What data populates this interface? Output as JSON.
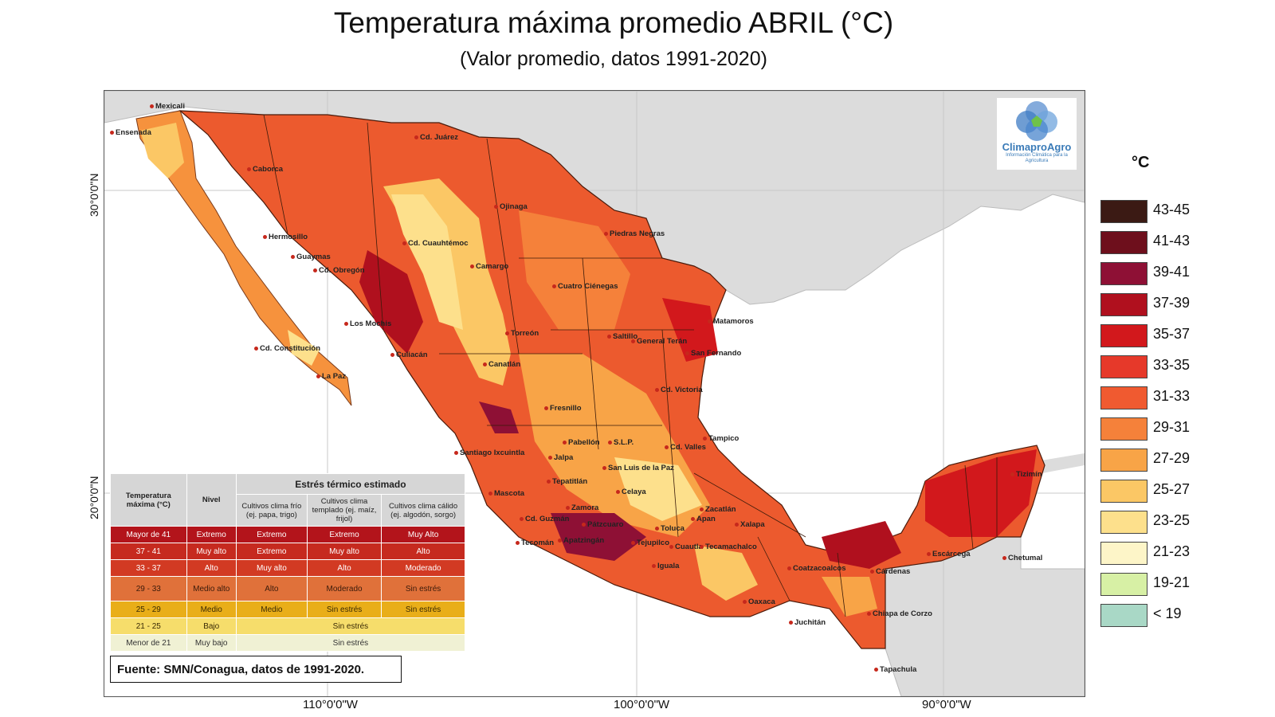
{
  "title": "Temperatura máxima promedio ABRIL (°C)",
  "subtitle": "(Valor promedio, datos 1991-2020)",
  "axes": {
    "lat_labels": [
      "30°0'0\"N",
      "20°0'0\"N"
    ],
    "lon_labels": [
      "110°0'0\"W",
      "100°0'0\"W",
      "90°0'0\"W"
    ]
  },
  "logo": {
    "name": "ClimaproAgro",
    "tagline": "Información Climática para la Agricultura"
  },
  "legend": {
    "unit": "°C",
    "classes": [
      {
        "label": "43-45",
        "color": "#3b1a14"
      },
      {
        "label": "41-43",
        "color": "#6e0f1c"
      },
      {
        "label": "39-41",
        "color": "#8e1035"
      },
      {
        "label": "37-39",
        "color": "#b0101e"
      },
      {
        "label": "35-37",
        "color": "#d2181c"
      },
      {
        "label": "33-35",
        "color": "#e6392a"
      },
      {
        "label": "31-33",
        "color": "#f05a30"
      },
      {
        "label": "29-31",
        "color": "#f5813a"
      },
      {
        "label": "27-29",
        "color": "#f8a447"
      },
      {
        "label": "25-27",
        "color": "#fbc765"
      },
      {
        "label": "23-25",
        "color": "#fde08c"
      },
      {
        "label": "21-23",
        "color": "#fdf5c8"
      },
      {
        "label": "19-21",
        "color": "#d7f0a5"
      },
      {
        "label": "< 19",
        "color": "#a9d8c6"
      }
    ]
  },
  "cities": [
    "Mexicali",
    "Ensenada",
    "Cd. Juárez",
    "Caborca",
    "Ojinaga",
    "Hermosillo",
    "Cd. Cuauhtémoc",
    "Piedras Negras",
    "Guaymas",
    "Camargo",
    "Cd. Obregón",
    "Cuatro Ciénegas",
    "Matamoros",
    "Los Mochis",
    "Torreón",
    "Saltillo",
    "General Terán",
    "Cd. Constitución",
    "San Fernando",
    "Culiacán",
    "Canatlán",
    "La Paz",
    "Cd. Victoria",
    "Fresnillo",
    "Tampico",
    "Santiago Ixcuintla",
    "Pabellón",
    "S.L.P.",
    "Cd. Valles",
    "Jalpa",
    "Tepatitlán",
    "San Luis de la Paz",
    "Mascota",
    "Celaya",
    "Zamora",
    "Zacatlán",
    "Cd. Guzmán",
    "Pátzcuaro",
    "Apan",
    "Tecomán",
    "Toluca",
    "Xalapa",
    "Apatzingán",
    "Tejupilco",
    "Cuautla",
    "Tecamachalco",
    "Iguala",
    "Coatzacoalcos",
    "Cárdenas",
    "Oaxaca",
    "Chiapa de Corzo",
    "Juchitán",
    "Tapachula",
    "Tizimín",
    "Escárcega",
    "Chetumal"
  ],
  "stress_table": {
    "header": {
      "col1": "Temperatura máxima (°C)",
      "col2": "Nivel",
      "group": "Estrés térmico estimado",
      "sub1": "Cultivos clima frío (ej. papa, trigo)",
      "sub2": "Cultivos clima templado (ej. maíz, frijol)",
      "sub3": "Cultivos clima cálido (ej. algodón, sorgo)"
    },
    "rows": [
      {
        "temp": "Mayor de 41",
        "level": "Extremo",
        "frio": "Extremo",
        "templado": "Extremo",
        "calido": "Muy Alto",
        "bg": "#b3141b",
        "fg": "#ffffff"
      },
      {
        "temp": "37 - 41",
        "level": "Muy alto",
        "frio": "Extremo",
        "templado": "Muy alto",
        "calido": "Alto",
        "bg": "#c62a1f",
        "fg": "#ffffff"
      },
      {
        "temp": "33 - 37",
        "level": "Alto",
        "frio": "Muy alto",
        "templado": "Alto",
        "calido": "Moderado",
        "bg": "#d23a23",
        "fg": "#ffffff"
      },
      {
        "temp": "29 - 33",
        "level": "Medio alto",
        "frio": "Alto",
        "templado": "Moderado",
        "calido": "Sin estrés",
        "bg": "#e0713a",
        "fg": "#3a1a0a"
      },
      {
        "temp": "25 - 29",
        "level": "Medio",
        "frio": "Medio",
        "templado": "Sin estrés",
        "calido": "Sin estrés",
        "bg": "#e9ae19",
        "fg": "#3a2a05"
      },
      {
        "temp": "21 - 25",
        "level": "Bajo",
        "merged": "Sin estrés",
        "bg": "#f6dd6b",
        "fg": "#3a2a05"
      },
      {
        "temp": "Menor de 21",
        "level": "Muy bajo",
        "merged": "Sin estrés",
        "bg": "#f0f1d4",
        "fg": "#333333"
      }
    ]
  },
  "source": "Fuente: SMN/Conagua, datos de 1991-2020."
}
